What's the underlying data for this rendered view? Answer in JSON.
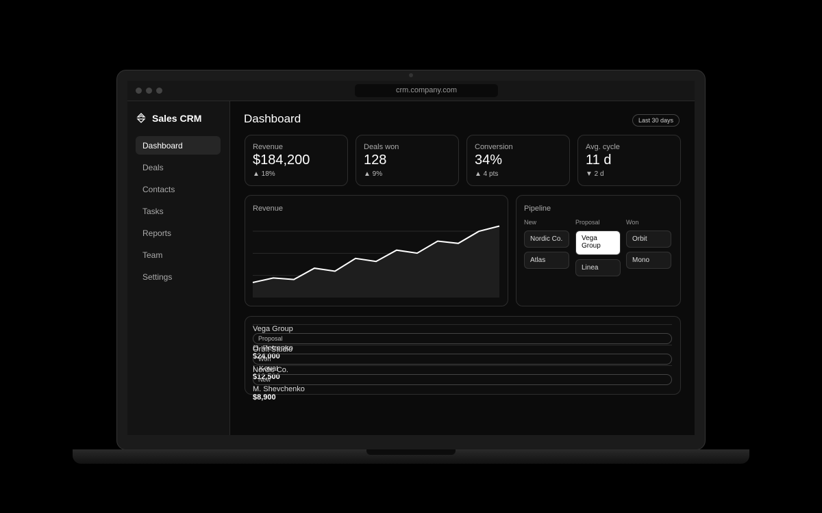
{
  "browser": {
    "url": "crm.company.com"
  },
  "sidebar": {
    "brand": "Sales CRM",
    "nav": [
      "Dashboard",
      "Deals",
      "Contacts",
      "Tasks",
      "Reports",
      "Team",
      "Settings"
    ]
  },
  "header": {
    "title": "Dashboard",
    "range": "Last 30 days"
  },
  "kpis": [
    {
      "label": "Revenue",
      "value": "$184,200",
      "change": "▲ 18%"
    },
    {
      "label": "Deals won",
      "value": "128",
      "change": "▲ 9%"
    },
    {
      "label": "Conversion",
      "value": "34%",
      "change": "▲ 4 pts"
    },
    {
      "label": "Avg. cycle",
      "value": "11 d",
      "change": "▼ 2 d"
    }
  ],
  "chart_data": {
    "type": "line",
    "title": "Revenue",
    "categories": [
      null,
      null,
      null,
      null,
      null,
      null,
      null,
      null,
      null,
      null,
      null,
      null,
      null
    ],
    "values": [
      20,
      26,
      24,
      39,
      35,
      52,
      48,
      63,
      59,
      75,
      72,
      88,
      95
    ],
    "ylim": [
      0,
      100
    ],
    "grid": true,
    "color": "#ffffff"
  },
  "pipeline": {
    "title": "Pipeline",
    "columns": [
      {
        "name": "New",
        "cards": [
          "Nordic Co.",
          "Atlas"
        ]
      },
      {
        "name": "Proposal",
        "cards": [
          "Vega Group",
          "Linea"
        ]
      },
      {
        "name": "Won",
        "cards": [
          "Orbit",
          "Mono"
        ]
      }
    ]
  },
  "deals": {
    "rows": [
      [
        "Vega Group",
        "Proposal",
        "O. Petrenko",
        "$24,000"
      ],
      [
        "Orbit Studio",
        "Won",
        "I. Koval",
        "$12,500"
      ],
      [
        "Nordic Co.",
        "New",
        "M. Shevchenko",
        "$8,900"
      ]
    ]
  }
}
